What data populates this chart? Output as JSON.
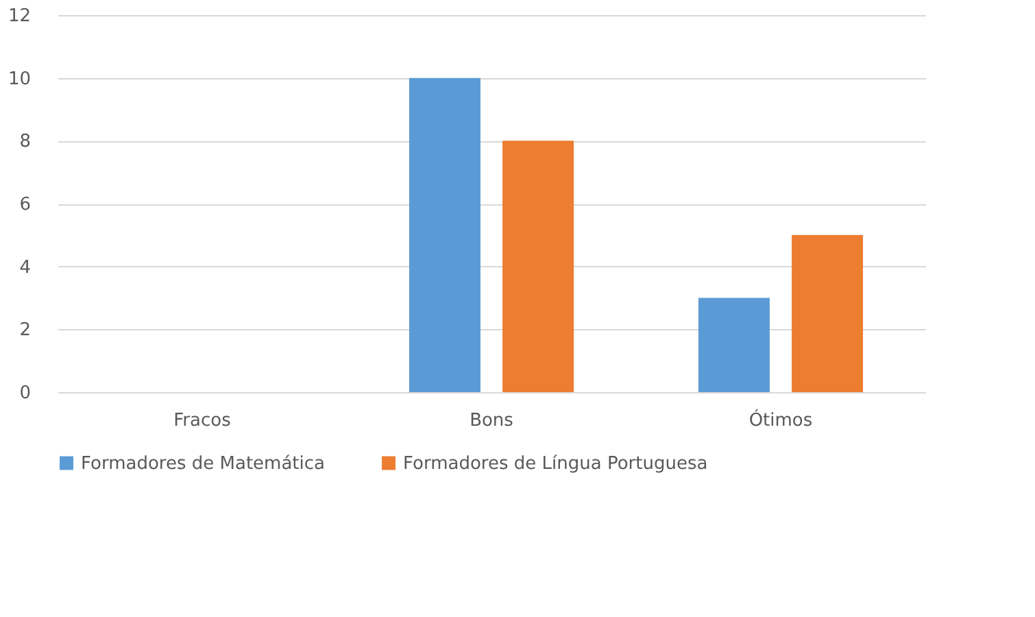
{
  "chart_data": {
    "type": "bar",
    "categories": [
      "Fracos",
      "Bons",
      "Ótimos"
    ],
    "series": [
      {
        "name": "Formadores de Matemática",
        "color": "#5b9bd5",
        "values": [
          0,
          10,
          3
        ]
      },
      {
        "name": "Formadores de Língua Portuguesa",
        "color": "#ed7d31",
        "values": [
          0,
          8,
          5
        ]
      }
    ],
    "ylim": [
      0,
      12
    ],
    "yticks": [
      0,
      2,
      4,
      6,
      8,
      10,
      12
    ],
    "grid": "y",
    "legend": "bottom"
  }
}
